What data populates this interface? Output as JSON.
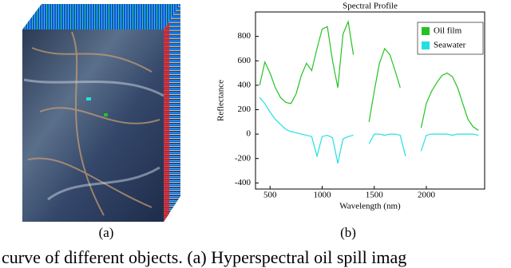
{
  "panel_labels": [
    "(a)",
    "(b)"
  ],
  "caption": "curve of different objects. (a) Hyperspectral oil spill imag",
  "chart_data": {
    "type": "line",
    "title": "Spectral Profile",
    "x_label": "Wavelength (nm)",
    "y_label": "Reflectance",
    "x": [
      400,
      450,
      500,
      550,
      600,
      650,
      700,
      750,
      800,
      850,
      900,
      950,
      1000,
      1050,
      1100,
      1150,
      1200,
      1250,
      1300,
      1350,
      1400,
      1450,
      1500,
      1550,
      1600,
      1650,
      1700,
      1750,
      1800,
      1850,
      1900,
      1950,
      2000,
      2050,
      2100,
      2150,
      2200,
      2250,
      2300,
      2350,
      2400,
      2450,
      2500
    ],
    "series": [
      {
        "name": "Oil film",
        "color": "#22c322",
        "values": [
          400,
          590,
          500,
          380,
          300,
          260,
          250,
          330,
          480,
          580,
          520,
          700,
          860,
          880,
          600,
          380,
          820,
          920,
          650,
          null,
          null,
          100,
          350,
          580,
          700,
          650,
          520,
          380,
          null,
          null,
          null,
          50,
          250,
          350,
          420,
          480,
          500,
          470,
          380,
          250,
          120,
          60,
          30
        ]
      },
      {
        "name": "Seawater",
        "color": "#22e0e0",
        "values": [
          300,
          250,
          180,
          120,
          80,
          40,
          20,
          10,
          0,
          -10,
          -20,
          -180,
          -20,
          -10,
          -30,
          -240,
          -40,
          -20,
          -10,
          null,
          null,
          -80,
          0,
          0,
          -10,
          0,
          0,
          -10,
          -180,
          null,
          null,
          -140,
          -10,
          0,
          0,
          0,
          0,
          -10,
          0,
          0,
          0,
          0,
          -10
        ]
      }
    ],
    "xlim": [
      360,
      2560
    ],
    "xticks": [
      500,
      1000,
      1500,
      2000
    ],
    "ylim": [
      -450,
      1000
    ],
    "yticks": [
      -400,
      -200,
      0,
      200,
      400,
      600,
      800
    ],
    "grid": false,
    "legend": "upper right"
  }
}
